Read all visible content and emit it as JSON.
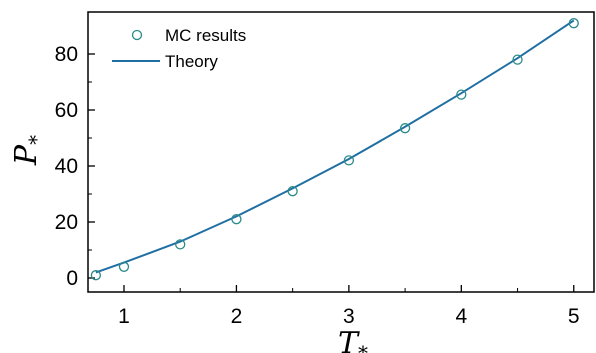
{
  "chart_data": {
    "type": "scatter",
    "xlabel_main": "T",
    "xlabel_sub": "*",
    "ylabel_main": "P",
    "ylabel_sub": "*",
    "xlim": [
      0.68,
      5.18
    ],
    "ylim": [
      -5,
      95
    ],
    "xticks": [
      1,
      2,
      3,
      4,
      5
    ],
    "yticks": [
      0,
      20,
      40,
      60,
      80
    ],
    "grid": false,
    "legend_position": "top-left",
    "series": [
      {
        "name": "MC results",
        "kind": "markers",
        "color": "#2a8a8a",
        "x": [
          0.75,
          1.0,
          1.5,
          2.0,
          2.5,
          3.0,
          3.5,
          4.0,
          4.5,
          5.0
        ],
        "y": [
          1.0,
          4.0,
          12.0,
          21.0,
          31.0,
          42.0,
          53.5,
          65.5,
          78.0,
          91.0
        ]
      },
      {
        "name": "Theory",
        "kind": "line",
        "color": "#1f6fa3",
        "x": [
          0.75,
          1.0,
          1.5,
          2.0,
          2.5,
          3.0,
          3.5,
          4.0,
          4.5,
          5.0
        ],
        "y": [
          2.0,
          5.5,
          13.0,
          22.0,
          32.0,
          42.5,
          54.0,
          66.0,
          78.5,
          92.0
        ]
      }
    ]
  }
}
